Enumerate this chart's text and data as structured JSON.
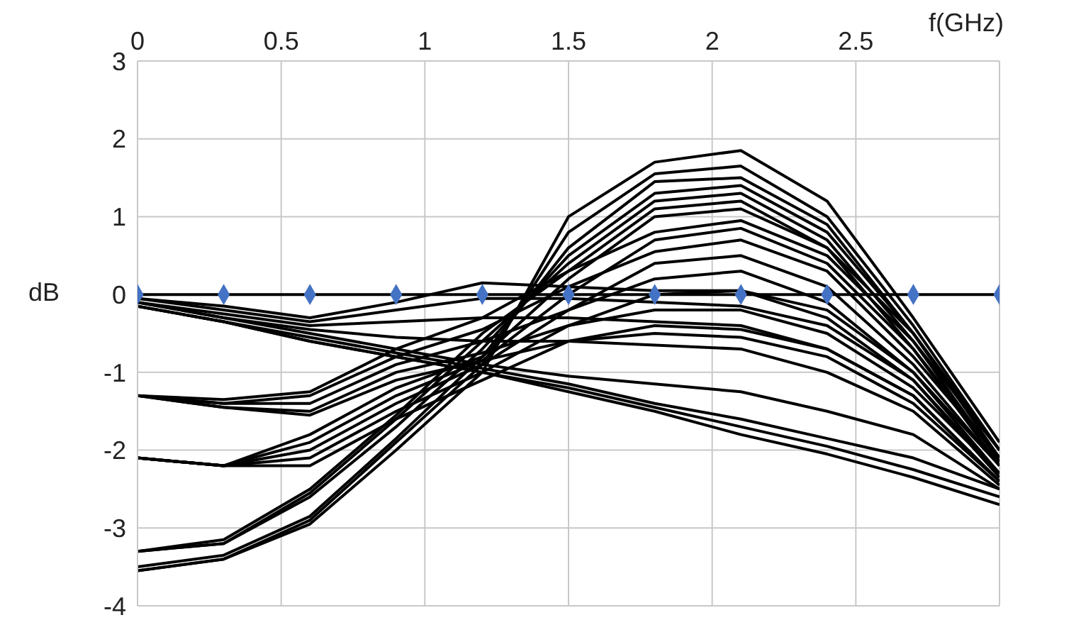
{
  "chart_data": {
    "type": "line",
    "xlabel": "f(GHz)",
    "ylabel": "dB",
    "x": [
      0,
      0.3,
      0.6,
      0.9,
      1.2,
      1.5,
      1.8,
      2.1,
      2.4,
      2.7,
      3.0
    ],
    "xlim": [
      0,
      3
    ],
    "xticks": [
      0,
      0.5,
      1,
      1.5,
      2,
      2.5
    ],
    "ylim": [
      -4,
      3
    ],
    "yticks": [
      -4,
      -3,
      -2,
      -1,
      0,
      1,
      2,
      3
    ],
    "grid": true,
    "marker": "none",
    "series": [
      {
        "color": "#000000",
        "values": [
          -0.05,
          -0.15,
          -0.3,
          -0.1,
          0.15,
          0.1,
          0.05,
          0.05,
          -0.2,
          -1.0,
          -2.3
        ]
      },
      {
        "color": "#000000",
        "values": [
          -0.05,
          -0.2,
          -0.35,
          -0.2,
          -0.05,
          -0.05,
          -0.1,
          -0.15,
          -0.4,
          -1.1,
          -2.35
        ]
      },
      {
        "color": "#000000",
        "values": [
          -0.1,
          -0.25,
          -0.4,
          -0.35,
          -0.3,
          -0.3,
          -0.35,
          -0.4,
          -0.7,
          -1.3,
          -2.4
        ]
      },
      {
        "color": "#000000",
        "values": [
          -0.1,
          -0.3,
          -0.45,
          -0.55,
          -0.6,
          -0.6,
          -0.65,
          -0.7,
          -1.0,
          -1.5,
          -2.45
        ]
      },
      {
        "color": "#000000",
        "values": [
          -0.1,
          -0.3,
          -0.5,
          -0.7,
          -0.9,
          -1.05,
          -1.15,
          -1.25,
          -1.5,
          -1.8,
          -2.5
        ]
      },
      {
        "color": "#000000",
        "values": [
          -0.15,
          -0.35,
          -0.55,
          -0.75,
          -0.95,
          -1.15,
          -1.4,
          -1.6,
          -1.85,
          -2.1,
          -2.5
        ]
      },
      {
        "color": "#000000",
        "values": [
          -0.15,
          -0.35,
          -0.6,
          -0.8,
          -1.0,
          -1.2,
          -1.45,
          -1.7,
          -1.95,
          -2.25,
          -2.6
        ]
      },
      {
        "color": "#000000",
        "values": [
          -0.15,
          -0.35,
          -0.6,
          -0.8,
          -1.0,
          -1.25,
          -1.5,
          -1.8,
          -2.05,
          -2.35,
          -2.7
        ]
      },
      {
        "color": "#000000",
        "values": [
          -1.3,
          -1.35,
          -1.25,
          -0.7,
          -0.3,
          0.3,
          0.8,
          0.95,
          0.5,
          -0.6,
          -2.0
        ]
      },
      {
        "color": "#000000",
        "values": [
          -1.3,
          -1.4,
          -1.3,
          -0.8,
          -0.45,
          0.1,
          0.55,
          0.7,
          0.3,
          -0.8,
          -2.1
        ]
      },
      {
        "color": "#000000",
        "values": [
          -1.3,
          -1.4,
          -1.4,
          -0.9,
          -0.6,
          -0.2,
          0.2,
          0.3,
          -0.1,
          -1.0,
          -2.2
        ]
      },
      {
        "color": "#000000",
        "values": [
          -1.3,
          -1.45,
          -1.5,
          -1.0,
          -0.75,
          -0.4,
          -0.2,
          -0.2,
          -0.5,
          -1.2,
          -2.3
        ]
      },
      {
        "color": "#000000",
        "values": [
          -1.3,
          -1.45,
          -1.55,
          -1.1,
          -0.85,
          -0.6,
          -0.5,
          -0.55,
          -0.8,
          -1.4,
          -2.4
        ]
      },
      {
        "color": "#000000",
        "values": [
          -2.1,
          -2.2,
          -1.8,
          -1.2,
          -0.8,
          0.2,
          1.0,
          1.1,
          0.6,
          -0.5,
          -2.0
        ]
      },
      {
        "color": "#000000",
        "values": [
          -2.1,
          -2.2,
          -1.9,
          -1.3,
          -0.85,
          0.0,
          0.7,
          0.85,
          0.4,
          -0.7,
          -2.1
        ]
      },
      {
        "color": "#000000",
        "values": [
          -2.1,
          -2.2,
          -2.0,
          -1.4,
          -0.9,
          -0.2,
          0.4,
          0.5,
          0.1,
          -0.9,
          -2.2
        ]
      },
      {
        "color": "#000000",
        "values": [
          -2.1,
          -2.2,
          -2.1,
          -1.5,
          -1.0,
          -0.4,
          0.0,
          0.05,
          -0.3,
          -1.1,
          -2.3
        ]
      },
      {
        "color": "#000000",
        "values": [
          -2.1,
          -2.2,
          -2.2,
          -1.6,
          -1.1,
          -0.6,
          -0.4,
          -0.45,
          -0.7,
          -1.3,
          -2.4
        ]
      },
      {
        "color": "#000000",
        "values": [
          -3.55,
          -3.4,
          -2.95,
          -2.0,
          -1.0,
          1.0,
          1.7,
          1.85,
          1.2,
          -0.3,
          -1.9
        ]
      },
      {
        "color": "#000000",
        "values": [
          -3.55,
          -3.4,
          -2.9,
          -1.9,
          -0.9,
          0.8,
          1.55,
          1.65,
          1.0,
          -0.4,
          -2.0
        ]
      },
      {
        "color": "#000000",
        "values": [
          -3.5,
          -3.35,
          -2.85,
          -1.85,
          -0.8,
          0.6,
          1.45,
          1.5,
          0.9,
          -0.5,
          -2.0
        ]
      },
      {
        "color": "#000000",
        "values": [
          -3.3,
          -3.2,
          -2.6,
          -1.7,
          -0.7,
          0.5,
          1.3,
          1.4,
          0.8,
          -0.5,
          -2.1
        ]
      },
      {
        "color": "#000000",
        "values": [
          -3.3,
          -3.2,
          -2.55,
          -1.6,
          -0.6,
          0.4,
          1.2,
          1.3,
          0.7,
          -0.6,
          -2.15
        ]
      },
      {
        "color": "#000000",
        "values": [
          -3.3,
          -3.15,
          -2.5,
          -1.55,
          -0.5,
          0.3,
          1.1,
          1.2,
          0.6,
          -0.7,
          -2.2
        ]
      },
      {
        "color": "#000000",
        "values": [
          0,
          0,
          0,
          0,
          0,
          0,
          0,
          0,
          0,
          0,
          0
        ]
      },
      {
        "type": "scatter",
        "color": "#4472c4",
        "marker": "diamond",
        "values": [
          0,
          0,
          0,
          0,
          0,
          0,
          0,
          0,
          0,
          0,
          0
        ]
      }
    ]
  }
}
